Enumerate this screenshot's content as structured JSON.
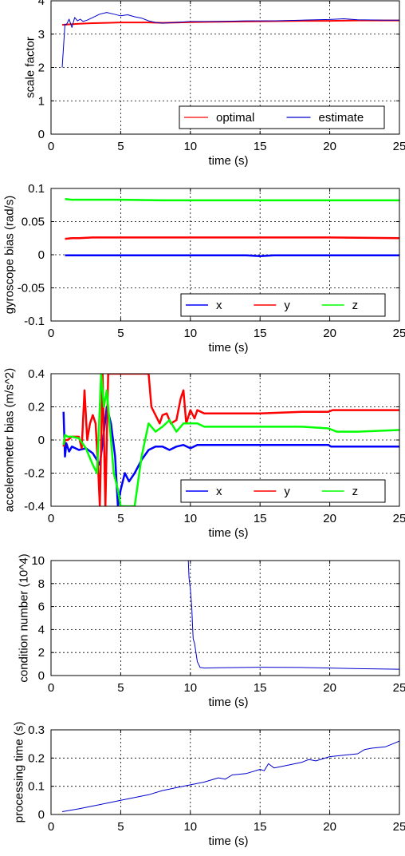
{
  "chart_data": [
    {
      "type": "line",
      "xlabel": "time (s)",
      "ylabel": "scale factor",
      "xlim": [
        0,
        25
      ],
      "ylim": [
        0,
        4
      ],
      "xticks": [
        "0",
        "5",
        "10",
        "15",
        "20",
        "25"
      ],
      "yticks": [
        "0",
        "1",
        "2",
        "3",
        "4"
      ],
      "grid": true,
      "legend": {
        "position": "bottom-right",
        "layout": "horizontal"
      },
      "series": [
        {
          "name": "optimal",
          "color": "#ff0000",
          "width": 2,
          "x": [
            0.8,
            1.2,
            2,
            3,
            4,
            5,
            6,
            7,
            8,
            10,
            12,
            14,
            16,
            18,
            20,
            22,
            24,
            25
          ],
          "y": [
            3.28,
            3.29,
            3.31,
            3.33,
            3.34,
            3.35,
            3.35,
            3.35,
            3.34,
            3.36,
            3.37,
            3.38,
            3.39,
            3.4,
            3.4,
            3.41,
            3.41,
            3.41
          ]
        },
        {
          "name": "estimate",
          "color": "#0000cc",
          "width": 1,
          "x": [
            0.8,
            1.0,
            1.1,
            1.3,
            1.5,
            1.7,
            1.9,
            2.1,
            2.3,
            2.6,
            3.0,
            3.5,
            4.0,
            4.5,
            5.0,
            5.5,
            6.0,
            6.5,
            7.0,
            7.5,
            8.0,
            9.0,
            10.0,
            12.0,
            14.0,
            16.0,
            18.0,
            20.0,
            21.0,
            22.0,
            24.0,
            25.0
          ],
          "y": [
            2.0,
            3.3,
            3.28,
            3.45,
            3.2,
            3.5,
            3.4,
            3.45,
            3.38,
            3.42,
            3.5,
            3.6,
            3.65,
            3.6,
            3.55,
            3.58,
            3.52,
            3.48,
            3.4,
            3.35,
            3.33,
            3.35,
            3.38,
            3.38,
            3.4,
            3.4,
            3.42,
            3.44,
            3.46,
            3.43,
            3.42,
            3.42
          ]
        }
      ]
    },
    {
      "type": "line",
      "xlabel": "time (s)",
      "ylabel": "gyroscope bias (rad/s)",
      "xlim": [
        0,
        25
      ],
      "ylim": [
        -0.1,
        0.1
      ],
      "xticks": [
        "0",
        "5",
        "10",
        "15",
        "20",
        "25"
      ],
      "yticks": [
        "-0.1",
        "-0.05",
        "0",
        "0.05",
        "0.1"
      ],
      "grid": true,
      "legend": {
        "position": "bottom-right",
        "layout": "horizontal"
      },
      "series": [
        {
          "name": "x",
          "color": "#0000ff",
          "width": 2.5,
          "x": [
            1,
            3,
            5,
            8,
            10,
            12,
            14,
            15,
            16,
            18,
            20,
            22,
            25
          ],
          "y": [
            -0.001,
            -0.001,
            -0.001,
            -0.001,
            -0.001,
            -0.001,
            -0.001,
            -0.002,
            -0.001,
            -0.001,
            -0.001,
            -0.001,
            -0.001
          ]
        },
        {
          "name": "y",
          "color": "#ff0000",
          "width": 2.5,
          "x": [
            1,
            1.5,
            2,
            3,
            5,
            8,
            10,
            15,
            20,
            25
          ],
          "y": [
            0.024,
            0.025,
            0.025,
            0.026,
            0.026,
            0.026,
            0.026,
            0.026,
            0.026,
            0.025
          ]
        },
        {
          "name": "z",
          "color": "#00ff00",
          "width": 2.5,
          "x": [
            1,
            1.5,
            2,
            3,
            5,
            8,
            10,
            15,
            20,
            25
          ],
          "y": [
            0.084,
            0.083,
            0.083,
            0.083,
            0.083,
            0.082,
            0.082,
            0.082,
            0.082,
            0.082
          ]
        }
      ]
    },
    {
      "type": "line",
      "xlabel": "time (s)",
      "ylabel": "accelerometer bias (m/s^2)",
      "xlim": [
        0,
        25
      ],
      "ylim": [
        -0.4,
        0.4
      ],
      "xticks": [
        "0",
        "5",
        "10",
        "15",
        "20",
        "25"
      ],
      "yticks": [
        "-0.4",
        "-0.2",
        "0",
        "0.2",
        "0.4"
      ],
      "grid": true,
      "legend": {
        "position": "bottom-right",
        "layout": "horizontal"
      },
      "series": [
        {
          "name": "x",
          "color": "#0000ff",
          "width": 2.5,
          "x": [
            0.9,
            1.0,
            1.1,
            1.3,
            1.5,
            2.0,
            2.5,
            3.0,
            3.5,
            3.8,
            4.0,
            4.3,
            4.6,
            4.8,
            5.0,
            5.3,
            5.6,
            6.0,
            6.5,
            7.0,
            7.5,
            8.0,
            8.5,
            9.0,
            9.5,
            10.0,
            10.5,
            11.0,
            12,
            14,
            16,
            18,
            19.9,
            20.1,
            22,
            25
          ],
          "y": [
            0.17,
            -0.1,
            -0.02,
            -0.07,
            -0.04,
            -0.06,
            -0.05,
            -0.08,
            -0.15,
            0.05,
            0.2,
            0.1,
            -0.1,
            -0.4,
            -0.3,
            -0.2,
            -0.25,
            -0.2,
            -0.12,
            -0.06,
            -0.04,
            -0.04,
            -0.06,
            -0.04,
            -0.03,
            -0.05,
            -0.03,
            -0.03,
            -0.03,
            -0.03,
            -0.03,
            -0.03,
            -0.03,
            -0.04,
            -0.04,
            -0.04
          ]
        },
        {
          "name": "y",
          "color": "#ff0000",
          "width": 2.5,
          "x": [
            0.9,
            1.0,
            1.2,
            1.5,
            2.0,
            2.2,
            2.4,
            2.6,
            2.8,
            3.0,
            3.2,
            3.4,
            3.5,
            3.7,
            3.9,
            4.1,
            4.3,
            4.5,
            7.0,
            7.2,
            7.5,
            7.8,
            8.0,
            8.3,
            8.6,
            9.0,
            9.3,
            9.5,
            9.7,
            10.0,
            10.3,
            10.5,
            11,
            12,
            15,
            18,
            19.9,
            20.2,
            21,
            25
          ],
          "y": [
            -0.04,
            0.0,
            0.0,
            0.02,
            0.02,
            -0.05,
            0.3,
            0.0,
            0.1,
            0.15,
            0.1,
            -0.2,
            -0.4,
            0.4,
            -0.4,
            0.4,
            0.4,
            0.4,
            0.4,
            0.2,
            0.15,
            0.1,
            0.15,
            0.16,
            0.1,
            0.12,
            0.25,
            0.3,
            0.1,
            0.18,
            0.13,
            0.18,
            0.16,
            0.16,
            0.16,
            0.17,
            0.17,
            0.18,
            0.18,
            0.18
          ]
        },
        {
          "name": "z",
          "color": "#00ff00",
          "width": 2.5,
          "x": [
            0.9,
            1.0,
            1.2,
            1.5,
            2.0,
            2.5,
            3.0,
            3.3,
            3.6,
            3.8,
            4.0,
            4.3,
            4.5,
            4.8,
            5.0,
            5.5,
            6.0,
            6.5,
            7.0,
            7.5,
            8.0,
            8.5,
            9.0,
            9.5,
            10.0,
            10.5,
            11.0,
            12,
            14,
            16,
            18,
            19.9,
            20.5,
            22,
            25
          ],
          "y": [
            -0.03,
            0.03,
            0.02,
            0.02,
            0.01,
            -0.05,
            -0.15,
            -0.2,
            0.4,
            0.2,
            0.3,
            0.0,
            -0.2,
            -0.3,
            -0.4,
            -0.4,
            -0.4,
            -0.1,
            0.1,
            0.05,
            0.08,
            0.12,
            0.05,
            0.1,
            0.1,
            0.1,
            0.08,
            0.08,
            0.08,
            0.08,
            0.08,
            0.07,
            0.05,
            0.05,
            0.06
          ]
        }
      ]
    },
    {
      "type": "line",
      "xlabel": "time (s)",
      "ylabel": "condition number (10^4)",
      "xlim": [
        0,
        25
      ],
      "ylim": [
        0,
        10
      ],
      "xticks": [
        "0",
        "5",
        "10",
        "15",
        "20",
        "25"
      ],
      "yticks": [
        "0",
        "2",
        "4",
        "6",
        "8",
        "10"
      ],
      "grid": true,
      "series": [
        {
          "color": "#0000cc",
          "width": 1,
          "x": [
            9.85,
            9.9,
            10.0,
            10.1,
            10.15,
            10.2,
            10.3,
            10.4,
            10.5,
            10.7,
            11.0,
            12.0,
            15.0,
            18.0,
            20.0,
            22.0,
            25.0
          ],
          "y": [
            10.0,
            8.5,
            7.5,
            6.0,
            4.5,
            3.2,
            2.8,
            2.0,
            1.2,
            0.7,
            0.65,
            0.68,
            0.72,
            0.7,
            0.65,
            0.6,
            0.55
          ]
        }
      ]
    },
    {
      "type": "line",
      "xlabel": "time (s)",
      "ylabel": "processing time (s)",
      "xlim": [
        0,
        25
      ],
      "ylim": [
        0,
        0.3
      ],
      "xticks": [
        "0",
        "5",
        "10",
        "15",
        "20",
        "25"
      ],
      "yticks": [
        "0",
        "0.1",
        "0.2",
        "0.3"
      ],
      "grid": true,
      "series": [
        {
          "color": "#0000cc",
          "width": 1,
          "x": [
            0.8,
            2,
            3,
            4,
            5,
            6,
            7,
            8,
            8.5,
            9,
            10,
            11,
            12,
            12.5,
            13,
            14,
            15,
            15.3,
            15.6,
            16,
            17,
            18,
            18.5,
            19,
            20,
            21,
            22,
            22.5,
            23,
            24,
            24.5,
            25
          ],
          "y": [
            0.01,
            0.02,
            0.03,
            0.04,
            0.05,
            0.06,
            0.07,
            0.085,
            0.09,
            0.095,
            0.105,
            0.115,
            0.13,
            0.125,
            0.14,
            0.145,
            0.16,
            0.155,
            0.18,
            0.165,
            0.175,
            0.185,
            0.195,
            0.19,
            0.205,
            0.21,
            0.215,
            0.23,
            0.235,
            0.24,
            0.25,
            0.26
          ]
        }
      ]
    }
  ]
}
